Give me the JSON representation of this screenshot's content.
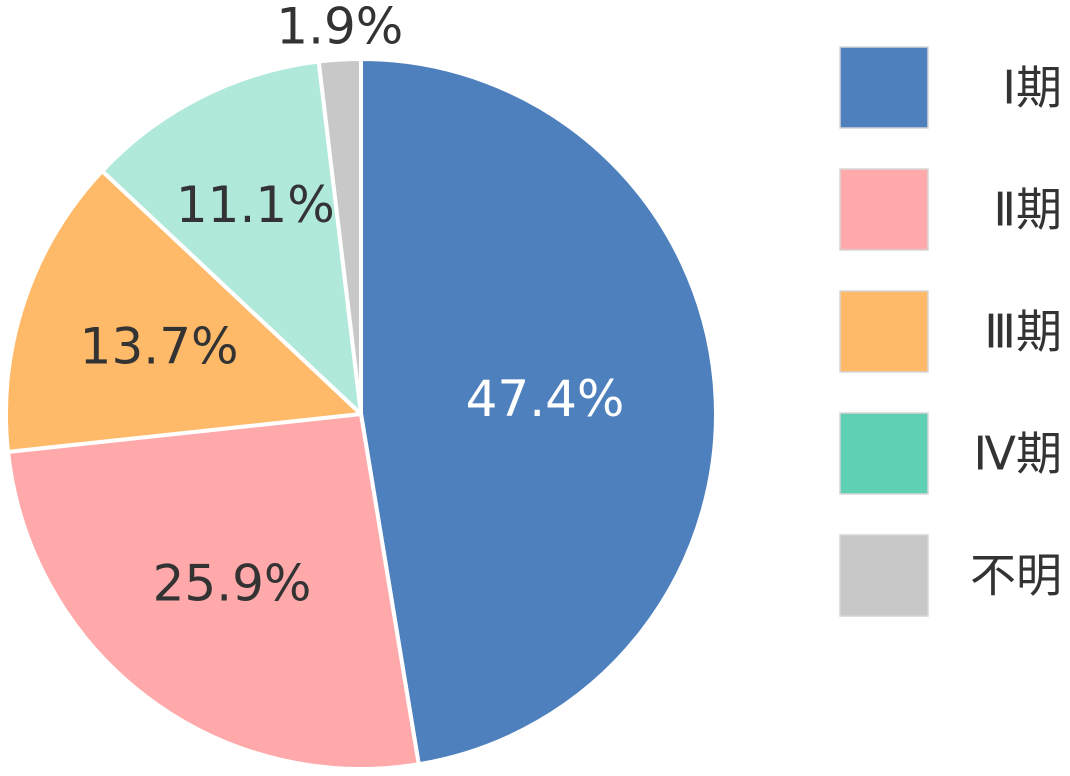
{
  "chart_data": {
    "type": "pie",
    "categories": [
      "Ⅰ期",
      "Ⅱ期",
      "Ⅲ期",
      "Ⅳ期",
      "不明"
    ],
    "values": [
      47.4,
      25.9,
      13.7,
      11.1,
      1.9
    ],
    "labels": [
      "47.4%",
      "25.9%",
      "13.7%",
      "11.1%",
      "1.9%"
    ],
    "colors": [
      "#4e80bd",
      "#ffa9ab",
      "#ffba69",
      "#b0e8da",
      "#c8c8c8"
    ],
    "legend_colors": [
      "#4e80bd",
      "#ffa9ab",
      "#ffba69",
      "#60d0b5",
      "#c8c8c8"
    ],
    "label_colors": [
      "#ffffff",
      "#333333",
      "#333333",
      "#333333",
      "#333333"
    ],
    "start": "12 o'clock",
    "direction": "clockwise",
    "legend_position": "right"
  }
}
